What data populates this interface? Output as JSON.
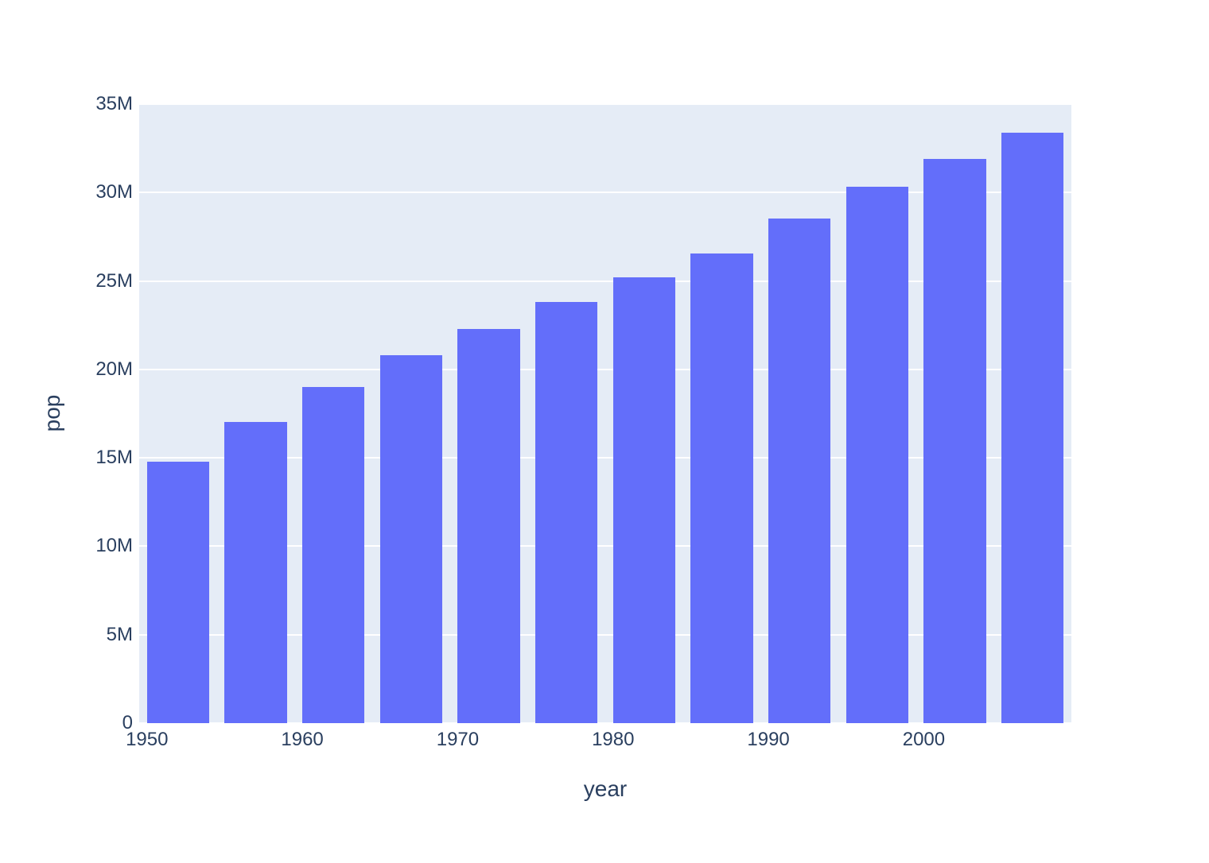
{
  "chart_data": {
    "type": "bar",
    "title": "",
    "xlabel": "year",
    "ylabel": "pop",
    "legend_position": "none",
    "grid": "horizontal",
    "series": [
      {
        "name": "pop",
        "x": [
          1952,
          1957,
          1962,
          1967,
          1972,
          1977,
          1982,
          1987,
          1992,
          1997,
          2002,
          2007
        ],
        "values": [
          14785584,
          17010154,
          18985849,
          20819767,
          22284500,
          23796400,
          25201900,
          26549700,
          28523502,
          30305843,
          31902268,
          33390141
        ]
      }
    ],
    "xlim": [
      1949.5,
      2009.5
    ],
    "ylim": [
      0,
      35000000
    ],
    "bar_width_years": 4,
    "x_ticks": [
      1950,
      1960,
      1970,
      1980,
      1990,
      2000
    ],
    "x_tick_labels": [
      "1950",
      "1960",
      "1970",
      "1980",
      "1990",
      "2000"
    ],
    "y_ticks": [
      0,
      5000000,
      10000000,
      15000000,
      20000000,
      25000000,
      30000000,
      35000000
    ],
    "y_tick_labels": [
      "0",
      "5M",
      "10M",
      "15M",
      "20M",
      "25M",
      "30M",
      "35M"
    ],
    "colors": {
      "bar": "#636efa",
      "plot_background": "#e5ecf6",
      "paper_background": "#ffffff",
      "grid": "#ffffff",
      "text": "#2a3f5f"
    }
  }
}
